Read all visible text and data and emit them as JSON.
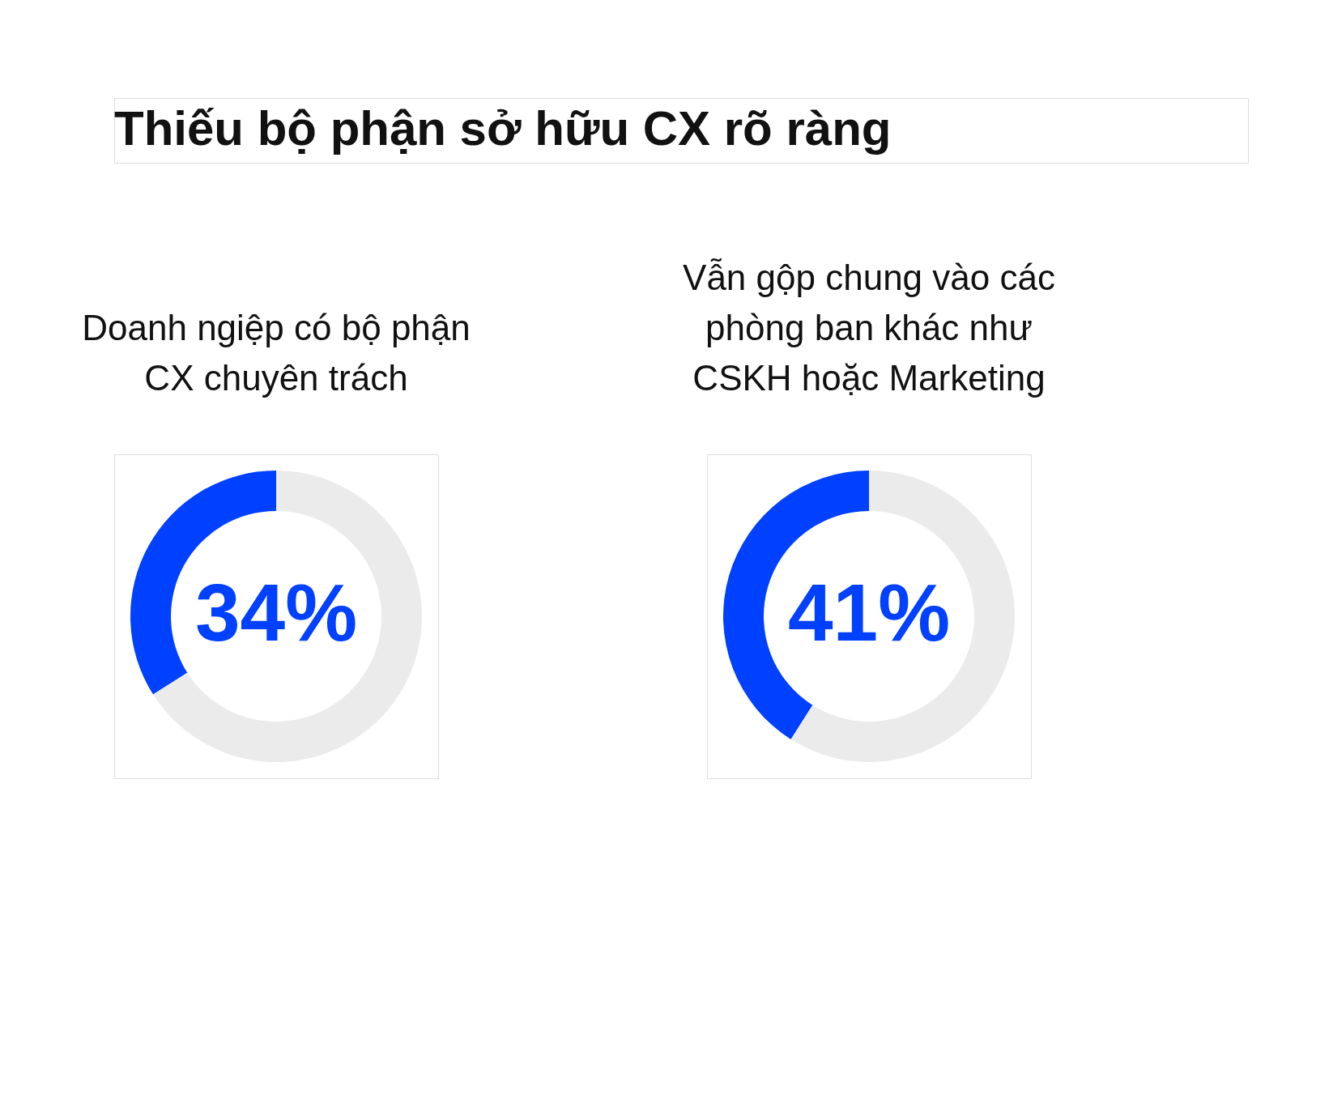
{
  "chart_data": [
    {
      "type": "other",
      "title": "Thiếu bộ phận sở hữu CX rõ ràng"
    },
    {
      "type": "donut",
      "title": "Doanh ngiệp có bộ phận\nCX chuyên trách",
      "categories": [
        null,
        null
      ],
      "values": [
        34,
        66
      ],
      "colors": [
        "#0040ff",
        "#ebebeb"
      ],
      "value_labels": [
        "34%",
        null
      ]
    },
    {
      "type": "donut",
      "title": "Vẫn gộp chung vào các\nphòng ban khác như\nCSKH hoặc Marketing",
      "categories": [
        null,
        null
      ],
      "values": [
        41,
        59
      ],
      "colors": [
        "#0040ff",
        "#ebebeb"
      ],
      "value_labels": [
        "41%",
        null
      ]
    }
  ]
}
